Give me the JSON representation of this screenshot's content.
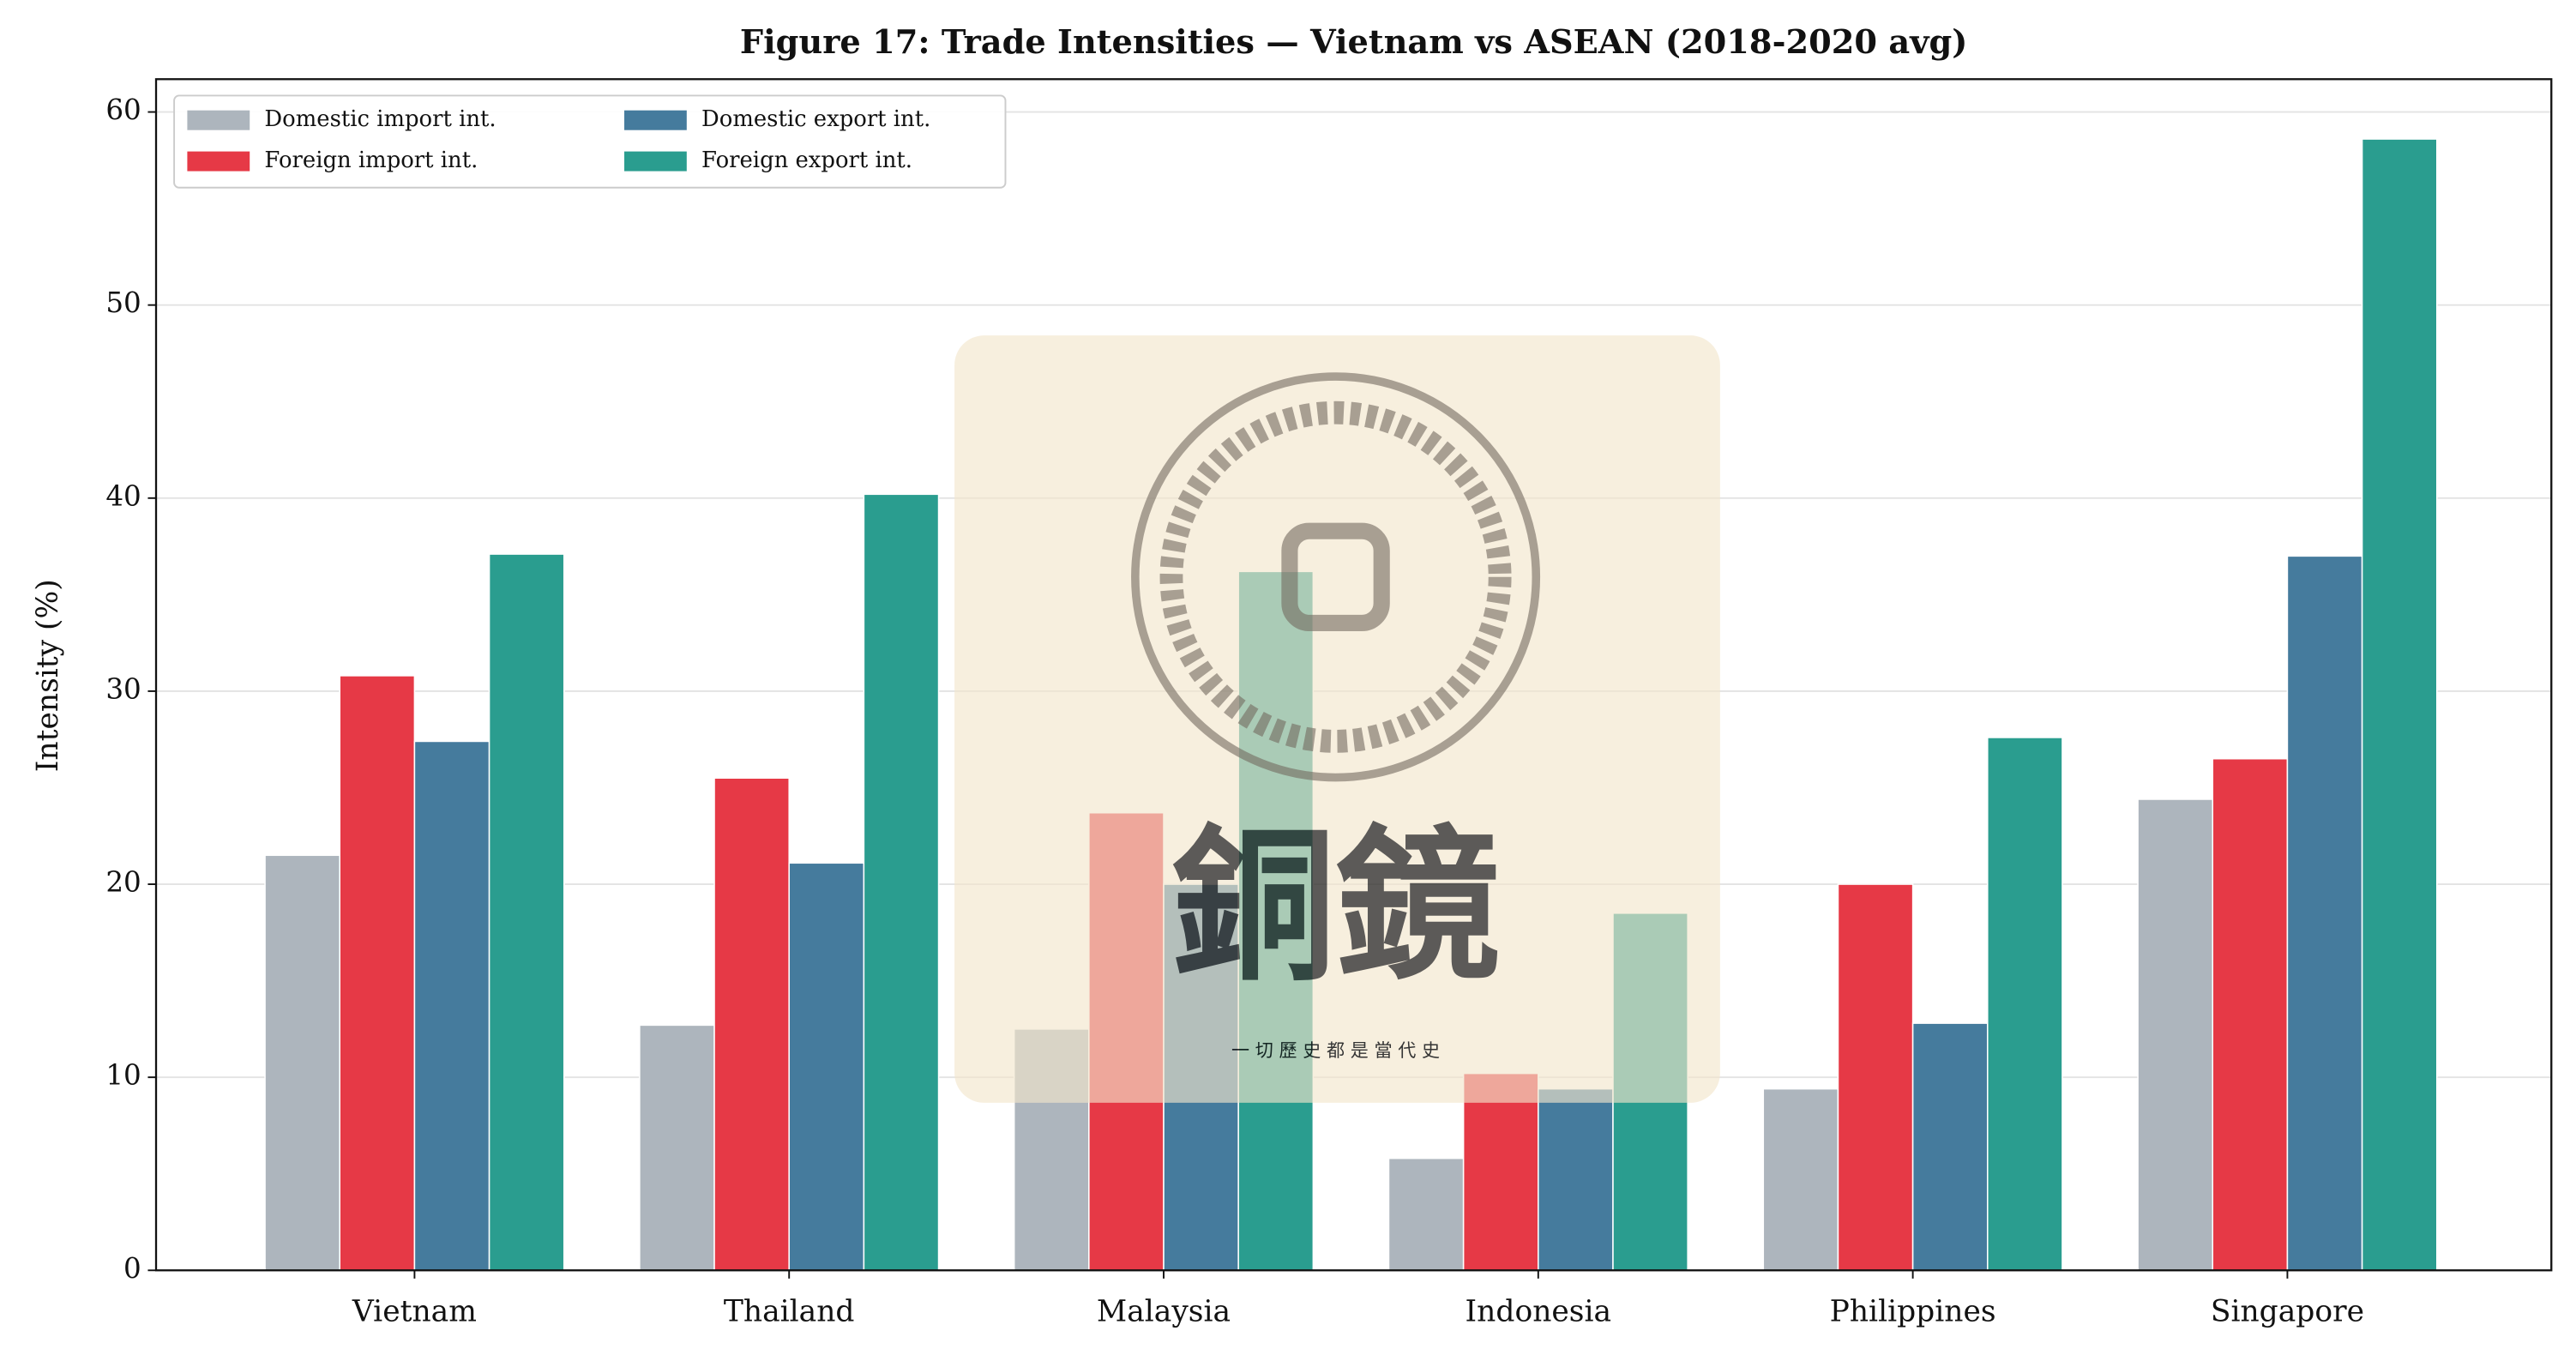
{
  "chart_data": {
    "type": "bar",
    "title": "Figure 17: Trade Intensities — Vietnam vs ASEAN (2018-2020 avg)",
    "y_label": "Intensity (%)",
    "categories": [
      "Vietnam",
      "Thailand",
      "Malaysia",
      "Indonesia",
      "Philippines",
      "Singapore"
    ],
    "series": [
      {
        "name": "Domestic import int.",
        "color": "#adb5bd",
        "values": [
          21.5,
          12.7,
          12.5,
          5.8,
          9.4,
          24.4
        ]
      },
      {
        "name": "Foreign import int.",
        "color": "#e63946",
        "values": [
          30.8,
          25.5,
          23.7,
          10.2,
          20.0,
          26.5
        ]
      },
      {
        "name": "Domestic export int.",
        "color": "#457b9d",
        "values": [
          27.4,
          21.1,
          20.0,
          9.4,
          12.8,
          37.0
        ]
      },
      {
        "name": "Foreign export int.",
        "color": "#2a9d8f",
        "values": [
          37.1,
          40.2,
          36.2,
          18.5,
          27.6,
          58.6
        ]
      }
    ],
    "ylim": [
      0,
      61.7
    ],
    "yticks": [
      0,
      10,
      20,
      30,
      40,
      50,
      60
    ],
    "grid": true,
    "legend": "upper left",
    "watermark": {
      "title": "銅鏡",
      "motto": "一 切 歷 史 都 是 當 代 史"
    }
  }
}
